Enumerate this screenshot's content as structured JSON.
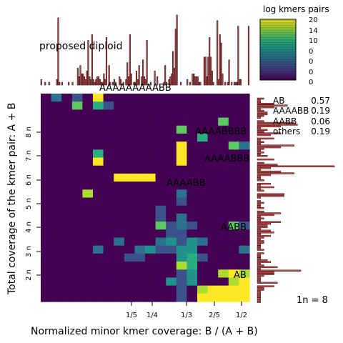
{
  "chart_data": {
    "type": "heatmap",
    "title": "",
    "xlabel": "Normalized minor kmer coverage: B / (A + B)",
    "ylabel": "Total coverage of the kmer pair: A + B",
    "x_ticks": [
      "1/5",
      "1/4",
      "1/3",
      "2/5",
      "1/2"
    ],
    "y_ticks": [
      "2 n",
      "3 n",
      "4 n",
      "5 n",
      "6 n",
      "7 n",
      "8 n"
    ],
    "colorbar": {
      "title": "log kmers pairs",
      "ticks": [
        "20",
        "14",
        "10",
        "0",
        "0",
        "0",
        "0"
      ],
      "colormap": [
        "#440154",
        "#472d7b",
        "#3b528b",
        "#2c728e",
        "#21918c",
        "#28ae80",
        "#5ec962",
        "#addc30",
        "#fde725"
      ]
    },
    "heatmap_rows_top_to_bottom": [
      [
        0,
        3,
        0,
        2,
        0,
        8,
        0,
        0,
        0,
        0,
        0,
        0,
        0,
        0,
        0,
        0,
        0,
        0,
        0,
        0
      ],
      [
        0,
        0,
        0,
        6,
        0,
        5,
        2,
        0,
        0,
        0,
        0,
        0,
        0,
        0,
        0,
        0,
        0,
        0,
        0,
        0
      ],
      [
        0,
        0,
        0,
        0,
        0,
        0,
        0,
        0,
        0,
        0,
        0,
        0,
        0,
        0,
        0,
        0,
        0,
        0,
        0,
        0
      ],
      [
        0,
        0,
        0,
        0,
        0,
        0,
        0,
        0,
        0,
        0,
        0,
        0,
        0,
        0,
        0,
        0,
        0,
        6,
        0,
        0
      ],
      [
        0,
        0,
        0,
        0,
        0,
        0,
        0,
        0,
        0,
        0,
        0,
        0,
        0,
        6,
        0,
        0,
        0,
        0,
        0,
        0
      ],
      [
        0,
        0,
        0,
        0,
        0,
        0,
        0,
        0,
        0,
        0,
        0,
        0,
        0,
        0,
        0,
        5,
        0,
        0,
        0,
        0
      ],
      [
        0,
        0,
        0,
        0,
        0,
        0,
        0,
        0,
        0,
        0,
        0,
        0,
        0,
        8,
        0,
        0,
        0,
        0,
        6,
        3
      ],
      [
        0,
        0,
        0,
        0,
        0,
        5,
        0,
        0,
        0,
        0,
        0,
        0,
        0,
        8,
        0,
        0,
        0,
        0,
        0,
        0
      ],
      [
        0,
        0,
        0,
        0,
        0,
        9,
        0,
        0,
        0,
        0,
        0,
        0,
        0,
        8,
        0,
        0,
        0,
        0,
        0,
        0
      ],
      [
        0,
        0,
        0,
        0,
        0,
        0,
        0,
        0,
        0,
        0,
        0,
        0,
        0,
        0,
        0,
        0,
        0,
        0,
        0,
        0
      ],
      [
        0,
        0,
        0,
        0,
        0,
        0,
        0,
        8,
        8,
        8,
        8,
        0,
        0,
        0,
        0,
        0,
        0,
        0,
        0,
        0
      ],
      [
        0,
        0,
        0,
        0,
        0,
        0,
        0,
        0,
        0,
        0,
        0,
        0,
        0,
        0,
        0,
        0,
        0,
        0,
        0,
        0
      ],
      [
        0,
        0,
        0,
        0,
        7,
        0,
        0,
        0,
        0,
        0,
        0,
        0,
        0,
        3,
        0,
        0,
        0,
        0,
        0,
        0
      ],
      [
        0,
        0,
        0,
        0,
        0,
        0,
        0,
        0,
        0,
        0,
        0,
        0,
        0,
        2,
        0,
        0,
        0,
        0,
        0,
        0
      ],
      [
        0,
        0,
        0,
        0,
        0,
        0,
        0,
        0,
        0,
        0,
        0,
        2,
        0,
        0,
        0,
        0,
        0,
        0,
        0,
        0
      ],
      [
        0,
        0,
        0,
        0,
        0,
        0,
        0,
        0,
        0,
        0,
        0,
        2,
        0,
        3,
        0,
        0,
        0,
        0,
        0,
        0
      ],
      [
        0,
        0,
        0,
        0,
        0,
        0,
        0,
        0,
        0,
        0,
        0,
        6,
        2,
        3,
        2,
        0,
        0,
        0,
        6,
        2
      ],
      [
        0,
        0,
        0,
        0,
        0,
        0,
        0,
        0,
        0,
        0,
        0,
        0,
        2,
        2,
        0,
        0,
        0,
        0,
        0,
        0
      ],
      [
        0,
        0,
        0,
        0,
        0,
        0,
        0,
        3,
        0,
        0,
        0,
        3,
        4,
        2,
        4,
        3,
        0,
        0,
        0,
        0
      ],
      [
        0,
        0,
        0,
        0,
        0,
        3,
        0,
        0,
        0,
        3,
        4,
        2,
        2,
        4,
        4,
        0,
        0,
        0,
        0,
        3
      ],
      [
        0,
        0,
        0,
        0,
        0,
        0,
        0,
        0,
        2,
        2,
        0,
        0,
        0,
        4,
        5,
        2,
        0,
        0,
        0,
        0
      ],
      [
        0,
        0,
        0,
        0,
        0,
        0,
        0,
        0,
        0,
        0,
        0,
        0,
        0,
        7,
        5,
        0,
        0,
        0,
        0,
        0
      ],
      [
        0,
        0,
        0,
        0,
        0,
        0,
        0,
        0,
        0,
        0,
        0,
        0,
        0,
        2,
        4,
        0,
        0,
        7,
        8,
        7
      ],
      [
        0,
        0,
        0,
        0,
        0,
        0,
        0,
        0,
        0,
        0,
        0,
        0,
        4,
        2,
        4,
        0,
        0,
        0,
        7,
        8
      ],
      [
        0,
        0,
        0,
        0,
        0,
        0,
        0,
        0,
        0,
        0,
        0,
        0,
        0,
        2,
        0,
        7,
        9,
        8,
        8,
        8
      ],
      [
        0,
        0,
        0,
        0,
        0,
        0,
        0,
        0,
        0,
        0,
        0,
        0,
        0,
        2,
        0,
        8,
        9,
        9,
        9,
        8
      ]
    ],
    "top_histogram": [
      2,
      0,
      0,
      1,
      0,
      0,
      1,
      0,
      0,
      0,
      0,
      0,
      2,
      24,
      1,
      0,
      1,
      0,
      0,
      0,
      0,
      1,
      0,
      0,
      1,
      0,
      0,
      0,
      6,
      3,
      7,
      4,
      4,
      3,
      2,
      5,
      16,
      3,
      2,
      18,
      2,
      1,
      2,
      3,
      3,
      2,
      1,
      1,
      4,
      2,
      17,
      0,
      7,
      1,
      0,
      1,
      2,
      1,
      0,
      0,
      3,
      2,
      0,
      1,
      0,
      2,
      8,
      3,
      18,
      4,
      0,
      1,
      1,
      5,
      2,
      7,
      0,
      3,
      9,
      3,
      2,
      16,
      0,
      0,
      1,
      0,
      0,
      5,
      0,
      3,
      0,
      0,
      0,
      0,
      1,
      7,
      1,
      0,
      2,
      3,
      4,
      12,
      6,
      20,
      25,
      0,
      0,
      1,
      0,
      0,
      0,
      0,
      2,
      0,
      1,
      0,
      4,
      4,
      3,
      3,
      3,
      1,
      1,
      0,
      0,
      10,
      10,
      3,
      10,
      17,
      10,
      5,
      1,
      0,
      0,
      23,
      2,
      18,
      15,
      4,
      0,
      1,
      0,
      1,
      9,
      0,
      1,
      0,
      1,
      1,
      1,
      21,
      2,
      2,
      0,
      0,
      0,
      0,
      0,
      21
    ],
    "side_histogram": [
      2,
      1,
      1,
      5,
      9,
      5,
      1,
      2,
      3,
      3,
      2,
      1,
      0,
      2,
      11,
      12,
      7,
      1,
      3,
      2,
      7,
      4,
      0,
      5,
      1,
      2,
      1,
      11,
      7,
      2,
      1,
      2,
      1,
      3,
      0,
      5,
      0,
      2,
      6,
      23,
      4,
      1,
      7,
      11,
      4,
      1,
      1,
      2,
      0,
      4,
      1,
      5,
      1,
      2,
      0,
      8,
      8,
      1,
      0,
      1,
      2,
      1,
      1,
      2,
      0,
      2,
      7,
      5,
      1,
      2,
      1,
      7,
      4,
      3,
      3,
      1,
      4,
      5,
      1,
      4,
      2,
      1,
      2,
      2,
      1,
      1,
      1,
      2,
      0,
      2,
      1,
      1,
      1,
      3,
      4,
      1,
      2,
      6,
      1,
      13,
      5,
      5,
      2,
      1,
      1,
      1,
      6,
      0,
      5,
      2,
      2,
      1,
      1,
      1,
      1,
      1,
      1,
      1
    ],
    "top_annotation": "proposed diploid",
    "smudge_labels": [
      "AAAAAAAAABB",
      "AAAABBBB",
      "AAAABBB",
      "AAAABB",
      "AABB",
      "AB"
    ],
    "legend": [
      {
        "label": "AB",
        "value": "0.57"
      },
      {
        "label": "AAAABB",
        "value": "0.19"
      },
      {
        "label": "AABB",
        "value": "0.06"
      },
      {
        "label": "others",
        "value": "0.19"
      }
    ],
    "n_label": "1n = 8"
  }
}
